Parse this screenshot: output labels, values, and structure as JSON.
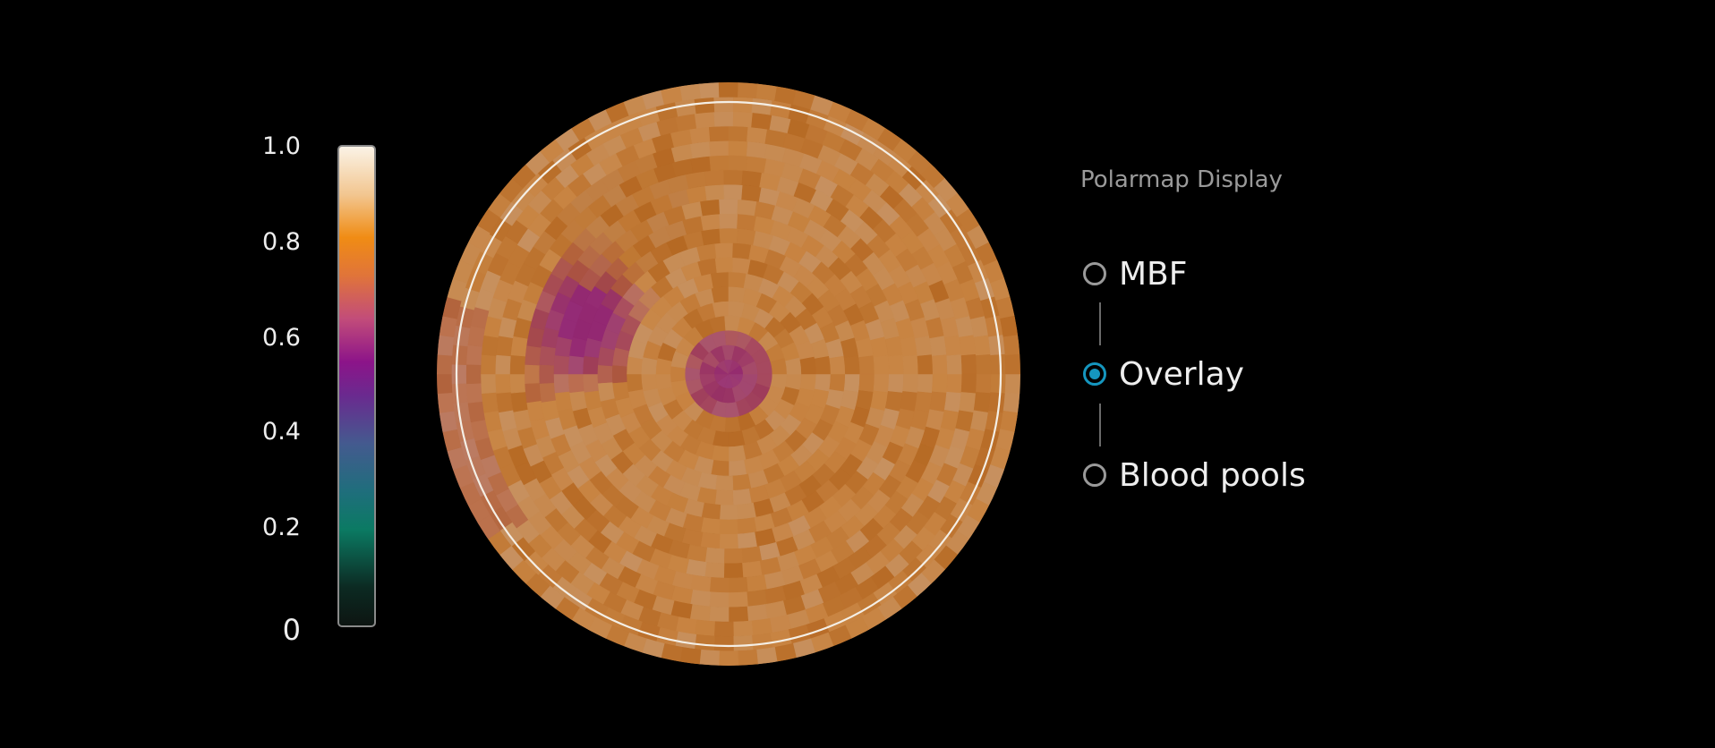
{
  "colors": {
    "background": "#000000",
    "accent": "#1596bf",
    "map_base": "#c8823f",
    "defect": "#8b1a7d"
  },
  "colorscale": {
    "ticks": [
      "1.0",
      "0.8",
      "0.6",
      "0.4",
      "0.2",
      "0"
    ],
    "tick_values": [
      1.0,
      0.8,
      0.6,
      0.4,
      0.2,
      0
    ],
    "colormap": [
      "#0d1512",
      "#0b7a63",
      "#445a8f",
      "#8c1489",
      "#f08c14",
      "#fbf3e6"
    ]
  },
  "polarmap": {
    "icon": "polarmap-disc"
  },
  "panel": {
    "title": "Polarmap Display",
    "options": [
      {
        "label": "MBF",
        "selected": false
      },
      {
        "label": "Overlay",
        "selected": true
      },
      {
        "label": "Blood pools",
        "selected": false
      }
    ]
  }
}
